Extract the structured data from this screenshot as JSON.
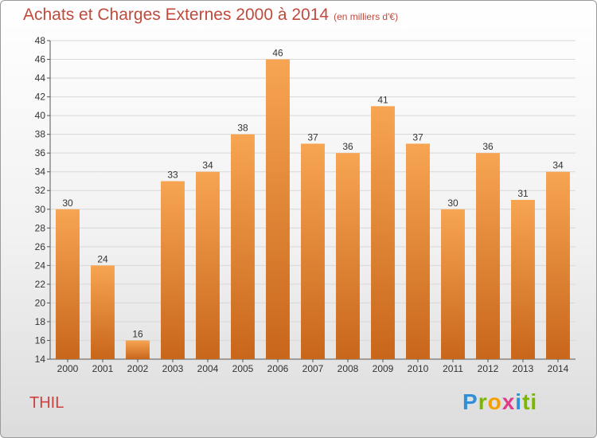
{
  "header": {
    "title": "Achats et Charges Externes 2000 à 2014",
    "subtitle": "(en milliers d'€)"
  },
  "place_name": "THIL",
  "logo": {
    "letters": [
      "P",
      "r",
      "o",
      "x",
      "i",
      "ti"
    ]
  },
  "colors": {
    "bar_top": "#f7a552",
    "bar_bottom": "#c8661b",
    "title": "#c04a3c"
  },
  "chart_data": {
    "type": "bar",
    "categories": [
      "2000",
      "2001",
      "2002",
      "2003",
      "2004",
      "2005",
      "2006",
      "2007",
      "2008",
      "2009",
      "2010",
      "2011",
      "2012",
      "2013",
      "2014"
    ],
    "values": [
      30,
      24,
      16,
      33,
      34,
      38,
      46,
      37,
      36,
      41,
      37,
      30,
      36,
      31,
      34
    ],
    "title": "Achats et Charges Externes 2000 à 2014",
    "subtitle": "(en milliers d'€)",
    "xlabel": "",
    "ylabel": "",
    "ylim": [
      14,
      48
    ],
    "yticks": [
      14,
      16,
      18,
      20,
      22,
      24,
      26,
      28,
      30,
      32,
      34,
      36,
      38,
      40,
      42,
      44,
      46,
      48
    ],
    "grid": true,
    "legend": "none"
  }
}
